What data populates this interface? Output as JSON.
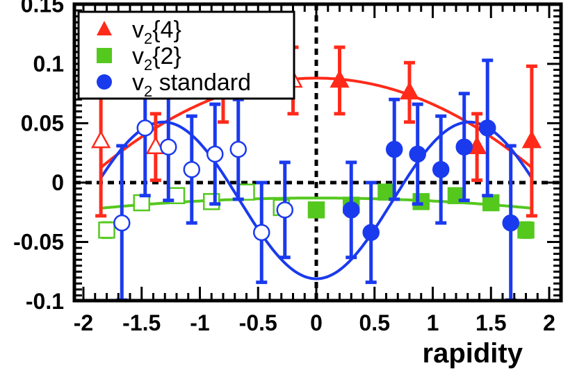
{
  "chart_data": {
    "type": "scatter",
    "xlabel": "rapidity",
    "ylabel": "",
    "xlim": [
      -2.0,
      2.0
    ],
    "ylim": [
      -0.1,
      0.15
    ],
    "x_ticks": [
      -2,
      -1.5,
      -1,
      -0.5,
      0,
      0.5,
      1,
      1.5,
      2
    ],
    "x_tick_labels": [
      "-2",
      "-1.5",
      "-1",
      "-0.5",
      "0",
      "0.5",
      "1",
      "1.5",
      "2"
    ],
    "y_ticks": [
      -0.1,
      -0.05,
      0,
      0.05,
      0.1,
      0.15
    ],
    "y_tick_labels": [
      "-0.1",
      "-0.05",
      "0",
      "0.05",
      "0.1",
      "0.15"
    ],
    "reference_lines": [
      {
        "orientation": "horizontal",
        "value": 0,
        "style": "dashed"
      },
      {
        "orientation": "vertical",
        "value": 0,
        "style": "dashed"
      }
    ],
    "legend": {
      "placement": "top-left"
    },
    "series": [
      {
        "name": "v2{4}",
        "legend_main": "v",
        "legend_sub": "2",
        "legend_rest": "{4}",
        "marker": "triangle",
        "color": "#ff2a1a",
        "points": [
          {
            "x": 0.2,
            "y": 0.086,
            "err": 0.028,
            "filled": true
          },
          {
            "x": 0.8,
            "y": 0.076,
            "err": 0.025,
            "filled": true
          },
          {
            "x": 1.38,
            "y": 0.03,
            "err": 0.028,
            "filled": true
          },
          {
            "x": 1.85,
            "y": 0.035,
            "err": 0.063,
            "filled": true
          },
          {
            "x": -0.2,
            "y": 0.086,
            "err": 0.028,
            "filled": false
          },
          {
            "x": -0.8,
            "y": 0.076,
            "err": 0.025,
            "filled": false
          },
          {
            "x": -1.38,
            "y": 0.03,
            "err": 0.028,
            "filled": false
          },
          {
            "x": -1.85,
            "y": 0.035,
            "err": 0.063,
            "filled": false
          }
        ],
        "fit": {
          "form": "a + b*x^2",
          "a": 0.088,
          "b": -0.022
        }
      },
      {
        "name": "v2{2}",
        "legend_main": "v",
        "legend_sub": "2",
        "legend_rest": "{2}",
        "marker": "square",
        "color": "#55c81e",
        "points": [
          {
            "x": 0.0,
            "y": -0.023,
            "err": 0.004,
            "filled": true
          },
          {
            "x": 0.3,
            "y": -0.019,
            "err": 0.004,
            "filled": true
          },
          {
            "x": 0.6,
            "y": -0.008,
            "err": 0.004,
            "filled": true
          },
          {
            "x": 0.9,
            "y": -0.016,
            "err": 0.004,
            "filled": true
          },
          {
            "x": 1.2,
            "y": -0.011,
            "err": 0.004,
            "filled": true
          },
          {
            "x": 1.5,
            "y": -0.017,
            "err": 0.004,
            "filled": true
          },
          {
            "x": 1.8,
            "y": -0.04,
            "err": 0.006,
            "filled": true
          },
          {
            "x": -0.3,
            "y": -0.021,
            "err": 0.004,
            "filled": false
          },
          {
            "x": -0.6,
            "y": -0.008,
            "err": 0.004,
            "filled": false
          },
          {
            "x": -0.9,
            "y": -0.016,
            "err": 0.004,
            "filled": false
          },
          {
            "x": -1.2,
            "y": -0.011,
            "err": 0.004,
            "filled": false
          },
          {
            "x": -1.5,
            "y": -0.017,
            "err": 0.004,
            "filled": false
          },
          {
            "x": -1.8,
            "y": -0.04,
            "err": 0.006,
            "filled": false
          }
        ],
        "fit": {
          "form": "a + b*x^2",
          "a": -0.013,
          "b": -0.0025
        }
      },
      {
        "name": "v2 standard",
        "legend_main": "v",
        "legend_sub": "2",
        "legend_rest": " standard",
        "marker": "circle",
        "color": "#1a3aee",
        "points": [
          {
            "x": 0.3,
            "y": -0.023,
            "err": 0.04,
            "filled": true
          },
          {
            "x": 0.47,
            "y": -0.042,
            "err": 0.042,
            "filled": true
          },
          {
            "x": 0.67,
            "y": 0.028,
            "err": 0.042,
            "filled": true
          },
          {
            "x": 0.87,
            "y": 0.024,
            "err": 0.042,
            "filled": true
          },
          {
            "x": 1.07,
            "y": 0.011,
            "err": 0.045,
            "filled": true
          },
          {
            "x": 1.27,
            "y": 0.03,
            "err": 0.045,
            "filled": true
          },
          {
            "x": 1.47,
            "y": 0.046,
            "err": 0.057,
            "filled": true
          },
          {
            "x": 1.67,
            "y": -0.034,
            "err": 0.065,
            "filled": true
          },
          {
            "x": -0.27,
            "y": -0.023,
            "err": 0.04,
            "filled": false
          },
          {
            "x": -0.47,
            "y": -0.042,
            "err": 0.042,
            "filled": false
          },
          {
            "x": -0.67,
            "y": 0.028,
            "err": 0.042,
            "filled": false
          },
          {
            "x": -0.87,
            "y": 0.024,
            "err": 0.042,
            "filled": false
          },
          {
            "x": -1.07,
            "y": 0.011,
            "err": 0.045,
            "filled": false
          },
          {
            "x": -1.27,
            "y": 0.03,
            "err": 0.045,
            "filled": false
          },
          {
            "x": -1.47,
            "y": 0.046,
            "err": 0.057,
            "filled": false
          },
          {
            "x": -1.67,
            "y": -0.034,
            "err": 0.065,
            "filled": false
          }
        ],
        "fit": {
          "form": "a + b*cos(c*x)",
          "a": -0.015,
          "b": -0.066,
          "c": 2.39
        }
      }
    ]
  }
}
